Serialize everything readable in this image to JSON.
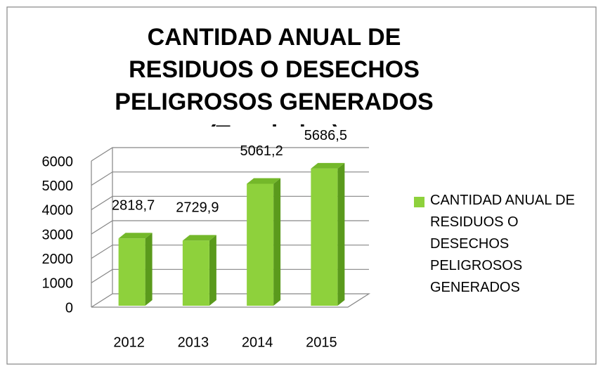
{
  "chart_data": {
    "type": "bar3d",
    "title": "CANTIDAD ANUAL DE RESIDUOS O DESECHOS PELIGROSOS GENERADOS (Toneladas)",
    "categories": [
      "2012",
      "2013",
      "2014",
      "2015"
    ],
    "series": [
      {
        "name": "CANTIDAD ANUAL DE RESIDUOS O DESECHOS PELIGROSOS GENERADOS",
        "color": "#8ed13c",
        "values": [
          2818.7,
          2729.9,
          5061.2,
          5686.5
        ],
        "value_labels": [
          "2818,7",
          "2729,9",
          "5061,2",
          "5686,5"
        ]
      }
    ],
    "ylim": [
      0,
      6000
    ],
    "yticks": [
      0,
      1000,
      2000,
      3000,
      4000,
      5000,
      6000
    ],
    "grid": true,
    "legend": "right"
  }
}
